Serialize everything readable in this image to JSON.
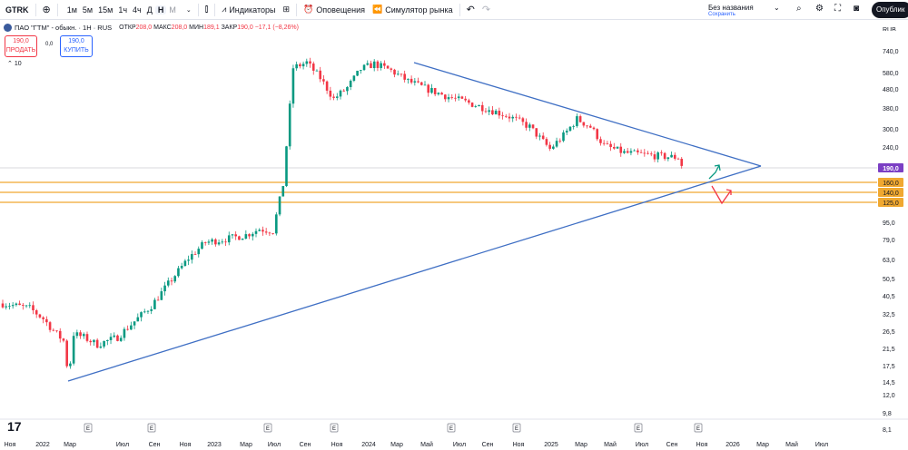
{
  "toolbar": {
    "symbol": "GTRK",
    "timeframes": [
      "1м",
      "5м",
      "15м",
      "1ч",
      "4ч",
      "Д",
      "Н",
      "М"
    ],
    "active_timeframe": "Н",
    "indicators_label": "Индикаторы",
    "alerts_label": "Оповещения",
    "replay_label": "Симулятор рынка",
    "layout_name": "Без названия",
    "layout_status": "Сохранить",
    "publish_label": "Опублик"
  },
  "legend": {
    "title": "ПАО \"ГТМ\" - обыкн. · 1Н · RUS",
    "open_label": "ОТКР",
    "open": "208,0",
    "high_label": "МАКС",
    "high": "208,0",
    "low_label": "МИН",
    "low": "189,1",
    "close_label": "ЗАКР",
    "close": "190,0",
    "change": "−17,1 (−8,26%)",
    "sell_price": "190,0",
    "sell_label": "ПРОДАТЬ",
    "spread": "0,0",
    "buy_price": "190,0",
    "buy_label": "КУПИТЬ",
    "volume_label": "10"
  },
  "currency": "RUB",
  "colors": {
    "up": "#089981",
    "down": "#f23645",
    "trendline": "#3f6fc4",
    "level": "#f0a830",
    "last_price": "#7b3fc4"
  },
  "chart_data": {
    "type": "candlestick",
    "scale": "log",
    "x_tick_labels": [
      "Ноя",
      "2022",
      "Мар",
      "Июл",
      "Сен",
      "Ноя",
      "2023",
      "Мар",
      "Июл",
      "Сен",
      "Ноя",
      "2024",
      "Мар",
      "Май",
      "Июл",
      "Сен",
      "Ноя",
      "2025",
      "Мар",
      "Май",
      "Июл",
      "Сен",
      "Ноя",
      "2026",
      "Мар",
      "Май",
      "Июл"
    ],
    "y_tick_labels": [
      "740,0",
      "580,0",
      "480,0",
      "380,0",
      "300,0",
      "240,0",
      "190,0",
      "160,0",
      "140,0",
      "125,0",
      "95,0",
      "79,0",
      "63,0",
      "50,5",
      "40,5",
      "32,5",
      "26,5",
      "21,5",
      "17,5",
      "14,5",
      "12,0",
      "9,8",
      "8,1"
    ],
    "last_price": 190.0,
    "levels": [
      160.0,
      140.0,
      125.0
    ],
    "earnings_marker": "E",
    "ylim": [
      8.0,
      800.0
    ],
    "path_points": [
      [
        0,
        36
      ],
      [
        8,
        34
      ],
      [
        12,
        30
      ],
      [
        15,
        26
      ],
      [
        18,
        23
      ],
      [
        19.5,
        15
      ],
      [
        21,
        25
      ],
      [
        24,
        24
      ],
      [
        28,
        22
      ],
      [
        34,
        24
      ],
      [
        38,
        28
      ],
      [
        44,
        35
      ],
      [
        50,
        48
      ],
      [
        55,
        62
      ],
      [
        60,
        75
      ],
      [
        66,
        78
      ],
      [
        72,
        82
      ],
      [
        76,
        88
      ],
      [
        80,
        86
      ],
      [
        83,
        150
      ],
      [
        86,
        610
      ],
      [
        90,
        650
      ],
      [
        94,
        540
      ],
      [
        98,
        420
      ],
      [
        102,
        480
      ],
      [
        106,
        600
      ],
      [
        110,
        640
      ],
      [
        115,
        590
      ],
      [
        120,
        520
      ],
      [
        126,
        470
      ],
      [
        132,
        430
      ],
      [
        138,
        400
      ],
      [
        144,
        370
      ],
      [
        150,
        340
      ],
      [
        156,
        300
      ],
      [
        162,
        230
      ],
      [
        166,
        270
      ],
      [
        170,
        330
      ],
      [
        174,
        300
      ],
      [
        178,
        240
      ],
      [
        184,
        220
      ],
      [
        190,
        215
      ],
      [
        196,
        210
      ],
      [
        200,
        208
      ],
      [
        201,
        190
      ]
    ]
  }
}
